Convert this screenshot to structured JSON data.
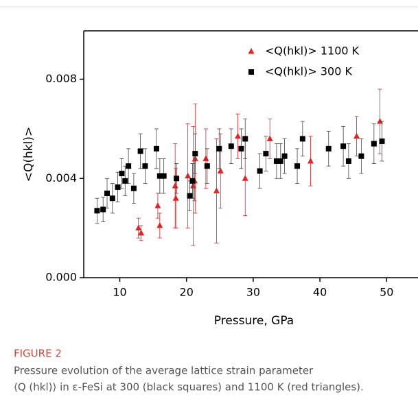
{
  "chart_data": {
    "type": "scatter",
    "xlabel": "Pressure, GPa",
    "ylabel": "<Q(hkl)>",
    "xlim": [
      4.6,
      54.7
    ],
    "ylim": [
      0,
      0.00995
    ],
    "xticks": [
      10,
      20,
      30,
      40,
      50
    ],
    "yticks": [
      {
        "value": 0,
        "label": "0.000"
      },
      0.004,
      0.008
    ],
    "legend": "upper right",
    "series": [
      {
        "name": "<Q(hkl)> 1100 K",
        "color": "#e8201f",
        "marker": "triangle",
        "x": [
          12.8,
          13.2,
          15.7,
          16.0,
          18.3,
          18.4,
          20.2,
          21.0,
          21.2,
          21.3,
          22.9,
          24.5,
          25.1,
          27.7,
          28.8,
          32.5,
          38.6,
          45.5,
          49.0
        ],
        "values": [
          0.002,
          0.0018,
          0.0029,
          0.0021,
          0.0037,
          0.0032,
          0.0041,
          0.0037,
          0.0039,
          0.0048,
          0.0048,
          0.0035,
          0.0043,
          0.0057,
          0.004,
          0.0056,
          0.0047,
          0.0057,
          0.0063
        ],
        "errors": [
          0.0004,
          0.0003,
          0.0005,
          0.0005,
          0.0017,
          0.0012,
          0.0021,
          0.0024,
          0.0008,
          0.0022,
          0.0012,
          0.0021,
          0.0015,
          0.0009,
          0.0015,
          0.0008,
          0.001,
          0.0008,
          0.0013
        ]
      },
      {
        "name": "<Q(hkl)> 300 K",
        "color": "#000000",
        "marker": "square",
        "x": [
          6.6,
          7.5,
          8.1,
          8.9,
          9.7,
          10.3,
          10.8,
          11.3,
          12.1,
          13.1,
          13.8,
          15.5,
          16.0,
          16.6,
          18.5,
          20.5,
          20.9,
          21.3,
          23.1,
          24.9,
          26.7,
          28.2,
          28.8,
          31.0,
          31.9,
          33.5,
          34.1,
          34.7,
          36.6,
          37.4,
          41.3,
          43.5,
          44.3,
          46.2,
          48.1,
          49.3
        ],
        "values": [
          0.0027,
          0.00275,
          0.0034,
          0.0032,
          0.00365,
          0.0042,
          0.0039,
          0.0045,
          0.0036,
          0.0051,
          0.0045,
          0.0052,
          0.0041,
          0.0041,
          0.004,
          0.0033,
          0.0039,
          0.005,
          0.0045,
          0.0052,
          0.0053,
          0.0052,
          0.0056,
          0.0043,
          0.005,
          0.0047,
          0.0047,
          0.0049,
          0.0045,
          0.0056,
          0.0052,
          0.0053,
          0.0047,
          0.0049,
          0.0054,
          0.0055
        ],
        "errors": [
          0.0005,
          0.0005,
          0.0006,
          0.0006,
          0.0006,
          0.0006,
          0.0006,
          0.0007,
          0.0006,
          0.0007,
          0.0007,
          0.0008,
          0.0007,
          0.0007,
          0.0006,
          0.0006,
          0.0007,
          0.0008,
          0.0007,
          0.0008,
          0.0007,
          0.0008,
          0.0008,
          0.0007,
          0.0007,
          0.0007,
          0.0007,
          0.0007,
          0.0007,
          0.0007,
          0.0007,
          0.0008,
          0.0007,
          0.0007,
          0.0008,
          0.0008
        ]
      }
    ]
  },
  "caption": {
    "label": "FIGURE 2",
    "lines": [
      "Pressure evolution of the average lattice strain parameter",
      "⟨Q (hkl)⟩ in ε-FeSi at 300 (black squares) and 1100 K (red triangles)."
    ]
  }
}
